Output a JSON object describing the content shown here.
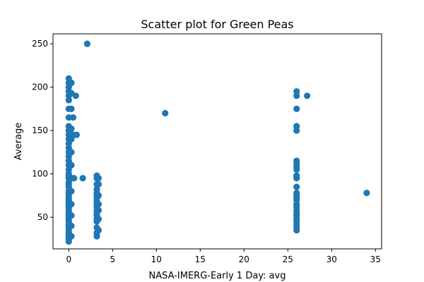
{
  "chart_data": {
    "type": "scatter",
    "title": "Scatter plot for Green Peas",
    "xlabel": "NASA-IMERG-Early 1 Day: avg",
    "ylabel": "Average",
    "xlim": [
      -1.8,
      35.7
    ],
    "ylim": [
      13.5,
      261.5
    ],
    "xticks": [
      0,
      5,
      10,
      15,
      20,
      25,
      30,
      35
    ],
    "yticks": [
      50,
      100,
      150,
      200,
      250
    ],
    "grid": false,
    "marker_color": "#1f77b4",
    "points": [
      [
        0,
        22
      ],
      [
        0,
        25
      ],
      [
        0,
        28
      ],
      [
        0,
        30
      ],
      [
        0,
        32
      ],
      [
        0,
        35
      ],
      [
        0,
        38
      ],
      [
        0,
        40
      ],
      [
        0,
        42
      ],
      [
        0,
        45
      ],
      [
        0,
        48
      ],
      [
        0,
        50
      ],
      [
        0,
        52
      ],
      [
        0,
        55
      ],
      [
        0,
        57
      ],
      [
        0,
        60
      ],
      [
        0,
        62
      ],
      [
        0,
        65
      ],
      [
        0,
        67
      ],
      [
        0,
        70
      ],
      [
        0,
        72
      ],
      [
        0,
        75
      ],
      [
        0,
        78
      ],
      [
        0,
        80
      ],
      [
        0,
        85
      ],
      [
        0,
        88
      ],
      [
        0,
        90
      ],
      [
        0,
        95
      ],
      [
        0,
        98
      ],
      [
        0,
        100
      ],
      [
        0,
        105
      ],
      [
        0,
        110
      ],
      [
        0,
        115
      ],
      [
        0,
        120
      ],
      [
        0,
        125
      ],
      [
        0,
        130
      ],
      [
        0,
        135
      ],
      [
        0,
        140
      ],
      [
        0,
        145
      ],
      [
        0,
        150
      ],
      [
        0,
        155
      ],
      [
        0,
        165
      ],
      [
        0,
        175
      ],
      [
        0,
        185
      ],
      [
        0,
        190
      ],
      [
        0,
        195
      ],
      [
        0,
        200
      ],
      [
        0,
        205
      ],
      [
        0,
        210
      ],
      [
        0.3,
        28
      ],
      [
        0.3,
        40
      ],
      [
        0.3,
        52
      ],
      [
        0.3,
        65
      ],
      [
        0.3,
        80
      ],
      [
        0.3,
        95
      ],
      [
        0.3,
        110
      ],
      [
        0.3,
        125
      ],
      [
        0.3,
        140
      ],
      [
        0.3,
        152
      ],
      [
        0.3,
        175
      ],
      [
        0.3,
        193
      ],
      [
        0.3,
        205
      ],
      [
        0.5,
        145
      ],
      [
        0.5,
        165
      ],
      [
        0.6,
        95
      ],
      [
        0.8,
        190
      ],
      [
        0.9,
        145
      ],
      [
        1.6,
        95
      ],
      [
        2.1,
        250
      ],
      [
        3.2,
        28
      ],
      [
        3.2,
        32
      ],
      [
        3.2,
        38
      ],
      [
        3.2,
        45
      ],
      [
        3.2,
        48
      ],
      [
        3.2,
        52
      ],
      [
        3.2,
        55
      ],
      [
        3.2,
        58
      ],
      [
        3.2,
        62
      ],
      [
        3.2,
        65
      ],
      [
        3.2,
        68
      ],
      [
        3.2,
        72
      ],
      [
        3.2,
        75
      ],
      [
        3.2,
        78
      ],
      [
        3.2,
        82
      ],
      [
        3.2,
        88
      ],
      [
        3.2,
        95
      ],
      [
        3.2,
        98
      ],
      [
        3.4,
        35
      ],
      [
        3.4,
        48
      ],
      [
        3.4,
        58
      ],
      [
        3.4,
        65
      ],
      [
        3.4,
        75
      ],
      [
        3.4,
        88
      ],
      [
        3.4,
        95
      ],
      [
        11,
        170
      ],
      [
        26,
        35
      ],
      [
        26,
        38
      ],
      [
        26,
        42
      ],
      [
        26,
        45
      ],
      [
        26,
        48
      ],
      [
        26,
        52
      ],
      [
        26,
        55
      ],
      [
        26,
        58
      ],
      [
        26,
        62
      ],
      [
        26,
        65
      ],
      [
        26,
        70
      ],
      [
        26,
        72
      ],
      [
        26,
        75
      ],
      [
        26,
        78
      ],
      [
        26,
        85
      ],
      [
        26,
        95
      ],
      [
        26,
        98
      ],
      [
        26,
        105
      ],
      [
        26,
        108
      ],
      [
        26,
        112
      ],
      [
        26,
        115
      ],
      [
        26,
        150
      ],
      [
        26,
        155
      ],
      [
        26,
        175
      ],
      [
        26,
        190
      ],
      [
        26,
        195
      ],
      [
        27.2,
        190
      ],
      [
        34,
        78
      ]
    ]
  }
}
